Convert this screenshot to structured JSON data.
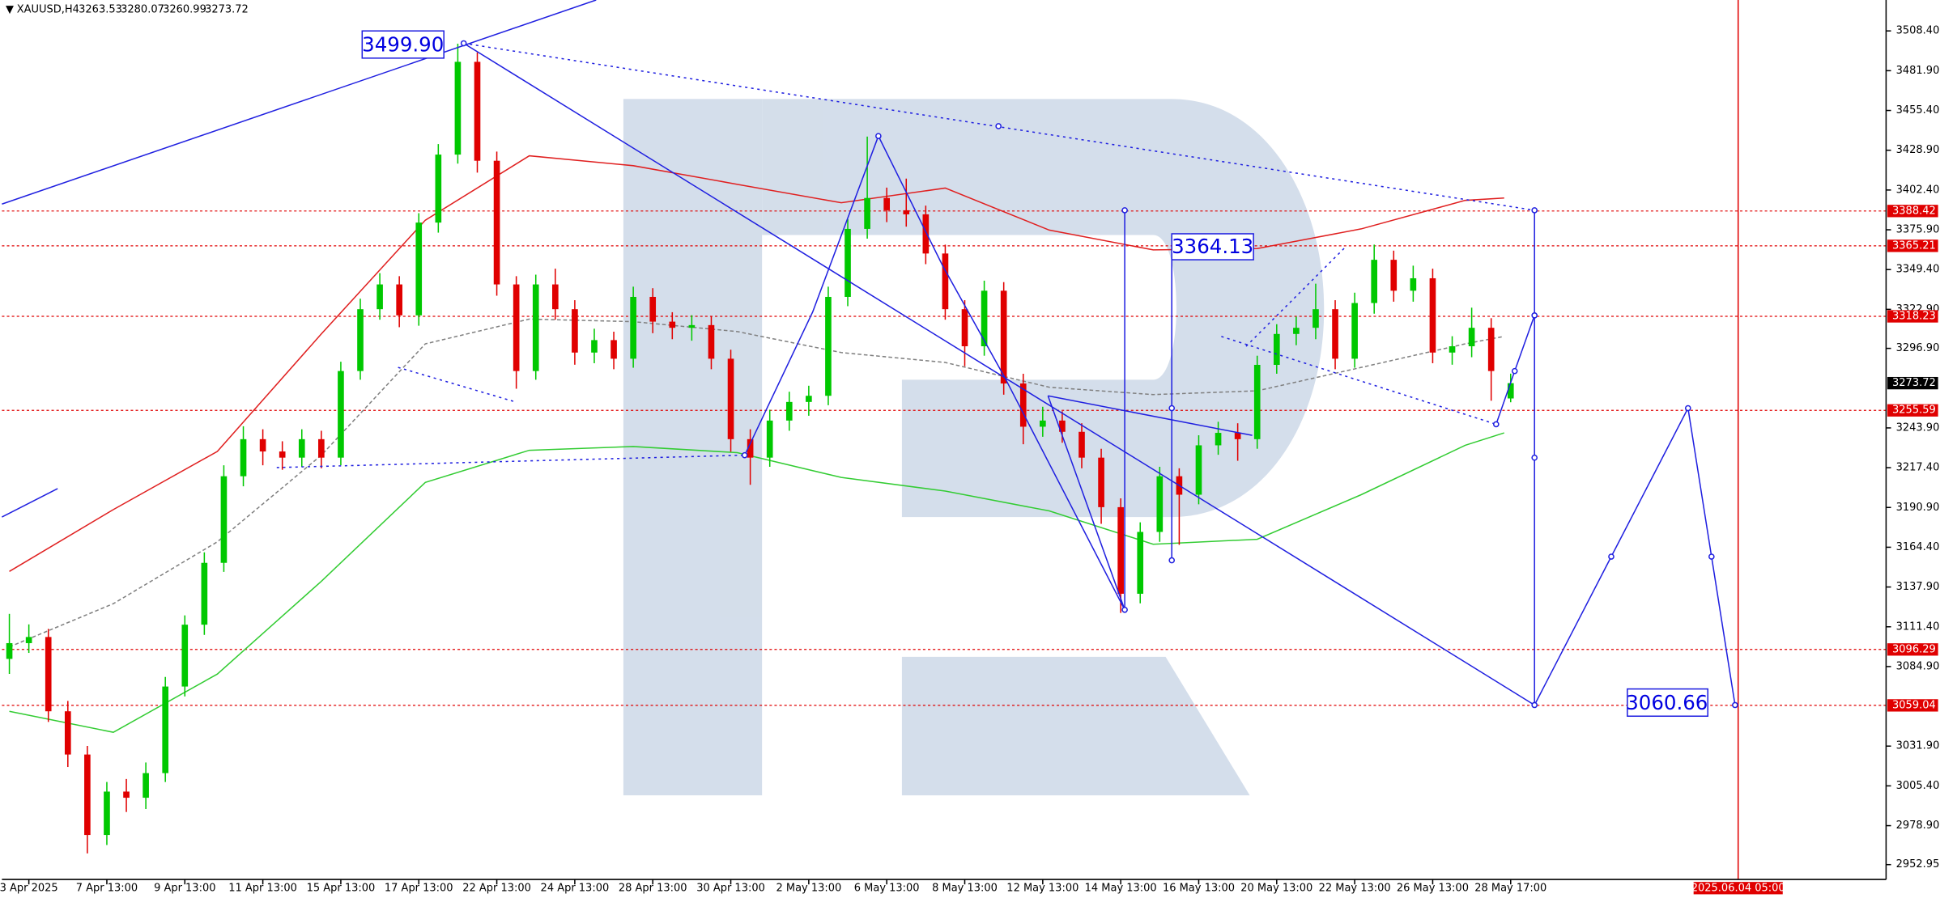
{
  "chart_data": {
    "type": "candlestick",
    "symbol": "XAUUSD,H4",
    "up_color": "#00c800",
    "down_color": "#e00000",
    "x": [
      0,
      3,
      6,
      9,
      12,
      15,
      18,
      21,
      24,
      27,
      30,
      33,
      36,
      39,
      42,
      45,
      48,
      51,
      54,
      57,
      60,
      63,
      66,
      69,
      72,
      75,
      78,
      81,
      84,
      87,
      90,
      93,
      96,
      99,
      102,
      105,
      108,
      111,
      114,
      117,
      120,
      123,
      126,
      129,
      132,
      135,
      138,
      141,
      144,
      147,
      150,
      153,
      156,
      159,
      162,
      165,
      168,
      171,
      174,
      177,
      180,
      183,
      186,
      189,
      192,
      195,
      198,
      201,
      204,
      207,
      210,
      213,
      216,
      219,
      222,
      225,
      228,
      231
    ],
    "open": [
      3090.0,
      3100.5,
      3104.6,
      3055.1,
      3026.3,
      2972.7,
      3001.6,
      2997.5,
      3013.9,
      3071.6,
      3112.8,
      3154.0,
      3211.7,
      3236.4,
      3228.2,
      3224.1,
      3236.4,
      3224.1,
      3281.8,
      3323.0,
      3339.5,
      3318.9,
      3380.7,
      3426.0,
      3487.8,
      3421.9,
      3339.5,
      3281.8,
      3339.5,
      3323.0,
      3294.1,
      3302.4,
      3290.0,
      3331.2,
      3314.7,
      3310.6,
      3312.4,
      3290.0,
      3236.4,
      3224.1,
      3248.8,
      3261.2,
      3265.3,
      3331.2,
      3376.5,
      3397.1,
      3388.9,
      3386.2,
      3360.1,
      3323.0,
      3298.3,
      3335.3,
      3273.5,
      3244.7,
      3248.8,
      3241.3,
      3224.1,
      3191.1,
      3133.4,
      3174.6,
      3211.7,
      3199.4,
      3232.3,
      3240.6,
      3236.4,
      3285.9,
      3306.5,
      3310.6,
      3323.0,
      3290.0,
      3327.1,
      3355.9,
      3335.3,
      3343.6,
      3294.1,
      3298.3,
      3310.6,
      3263.53
    ],
    "high": [
      3120,
      3113,
      3110,
      3062,
      3032,
      3008,
      3010,
      3021,
      3078,
      3119,
      3161,
      3219,
      3245,
      3243,
      3235,
      3243,
      3242,
      3288,
      3330,
      3347,
      3345,
      3387,
      3433,
      3499.9,
      3494,
      3428,
      3345,
      3346,
      3350,
      3329,
      3310,
      3308,
      3338,
      3337,
      3321,
      3319,
      3318,
      3296,
      3243,
      3256,
      3268,
      3272,
      3338,
      3383,
      3438,
      3404,
      3410,
      3392,
      3366,
      3329,
      3342,
      3341,
      3280,
      3258,
      3255,
      3247,
      3230,
      3197,
      3181,
      3218,
      3217,
      3239,
      3248,
      3247,
      3292,
      3313,
      3318,
      3340,
      3329,
      3334,
      3366,
      3362,
      3352,
      3350,
      3305,
      3324,
      3317,
      3280.07
    ],
    "low": [
      3080,
      3094,
      3048,
      3018,
      2960.4,
      2966,
      2988,
      2990,
      3008,
      3065,
      3106,
      3148,
      3205,
      3219,
      3216,
      3218,
      3217,
      3219,
      3276,
      3316,
      3311,
      3312,
      3374,
      3420,
      3414,
      3332,
      3270,
      3276,
      3316,
      3286,
      3287,
      3283,
      3284,
      3307,
      3303,
      3302,
      3283,
      3228,
      3206,
      3218,
      3242,
      3252,
      3259,
      3325,
      3370,
      3381,
      3378,
      3353,
      3316,
      3285,
      3292,
      3266,
      3233,
      3238,
      3234,
      3217,
      3180,
      3120.6,
      3127,
      3168,
      3166,
      3193,
      3226,
      3222,
      3230,
      3280,
      3299,
      3303,
      3283,
      3284,
      3320,
      3328,
      3328,
      3287,
      3286,
      3291,
      3262,
      3260.99
    ],
    "close": [
      3100.5,
      3104.6,
      3055.1,
      3026.3,
      2972.7,
      3001.6,
      2997.5,
      3013.9,
      3071.6,
      3112.8,
      3154.0,
      3211.7,
      3236.4,
      3228.2,
      3224.1,
      3236.4,
      3224.1,
      3281.8,
      3323.0,
      3339.5,
      3318.9,
      3380.7,
      3426.0,
      3487.8,
      3421.9,
      3339.5,
      3281.8,
      3339.5,
      3323.0,
      3294.1,
      3302.4,
      3290.0,
      3331.2,
      3314.7,
      3310.6,
      3312.4,
      3290.0,
      3236.4,
      3224.1,
      3248.8,
      3261.2,
      3265.3,
      3331.2,
      3376.5,
      3397.1,
      3388.9,
      3386.2,
      3360.1,
      3323.0,
      3298.3,
      3335.3,
      3273.5,
      3244.7,
      3248.8,
      3241.3,
      3224.1,
      3191.1,
      3133.4,
      3174.6,
      3211.7,
      3199.4,
      3232.3,
      3240.6,
      3236.4,
      3285.9,
      3306.5,
      3310.6,
      3323.0,
      3290.0,
      3327.1,
      3355.9,
      3335.3,
      3343.6,
      3294.1,
      3298.3,
      3310.6,
      3281.8,
      3273.72
    ],
    "indicators": [
      {
        "color": "#e02020",
        "dashed": false,
        "x": [
          0,
          16,
          32,
          48,
          64,
          80,
          96,
          112,
          128,
          144,
          160,
          176,
          192,
          208,
          224,
          230
        ],
        "values": [
          3148.3,
          3189.5,
          3228.2,
          3306.5,
          3382.3,
          3425.2,
          3418.6,
          3406.2,
          3393.9,
          3403.7,
          3375.7,
          3362.5,
          3363.4,
          3376.5,
          3395.5,
          3397.1
        ]
      },
      {
        "color": "#33cc33",
        "dashed": false,
        "x": [
          0,
          16,
          32,
          48,
          64,
          80,
          96,
          112,
          128,
          144,
          160,
          176,
          192,
          208,
          224,
          230
        ],
        "values": [
          3055.1,
          3041.1,
          3079.9,
          3141.7,
          3207.6,
          3229.0,
          3231.5,
          3227.4,
          3210.9,
          3201.8,
          3188.6,
          3166.4,
          3169.7,
          3199.4,
          3232.3,
          3240.6
        ]
      },
      {
        "color": "#808080",
        "dashed": true,
        "x": [
          0,
          16,
          32,
          48,
          64,
          80,
          96,
          112,
          128,
          144,
          160,
          176,
          192,
          208,
          224,
          230
        ],
        "values": [
          3098.0,
          3126.8,
          3168.0,
          3225.7,
          3299.9,
          3316.4,
          3314.7,
          3308.1,
          3294.1,
          3287.5,
          3271.0,
          3266.1,
          3268.6,
          3284.2,
          3299.9,
          3304.9
        ]
      }
    ],
    "levels": {
      "color": "#e00000",
      "values": [
        3388.42,
        3365.21,
        3318.23,
        3255.59,
        3096.29,
        3059.04
      ]
    },
    "annotations": [
      "3499.90",
      "3364.13",
      "3060.66"
    ],
    "time_marker": {
      "value": 266,
      "label": "2025.06.04 05:00"
    },
    "xlim": [
      -1.143,
      288.76
    ],
    "ylim": [
      2943.06,
      3529.0
    ],
    "yticks": [
      {
        "value": 3508.4,
        "label": "3508.40"
      },
      {
        "value": 3481.9,
        "label": "3481.90"
      },
      {
        "value": 3455.4,
        "label": "3455.40"
      },
      {
        "value": 3428.9,
        "label": "3428.90"
      },
      {
        "value": 3402.4,
        "label": "3402.40"
      },
      {
        "value": 3375.9,
        "label": "3375.90"
      },
      {
        "value": 3349.4,
        "label": "3349.40"
      },
      {
        "value": 3322.9,
        "label": "3322.90"
      },
      {
        "value": 3296.9,
        "label": "3296.90"
      },
      {
        "value": 3243.9,
        "label": "3243.90"
      },
      {
        "value": 3217.4,
        "label": "3217.40"
      },
      {
        "value": 3190.9,
        "label": "3190.90"
      },
      {
        "value": 3164.4,
        "label": "3164.40"
      },
      {
        "value": 3137.9,
        "label": "3137.90"
      },
      {
        "value": 3111.4,
        "label": "3111.40"
      },
      {
        "value": 3084.9,
        "label": "3084.90"
      },
      {
        "value": 3031.9,
        "label": "3031.90"
      },
      {
        "value": 3005.4,
        "label": "3005.40"
      },
      {
        "value": 2978.9,
        "label": "2978.90"
      },
      2952.95
    ],
    "xticks": [
      {
        "value": 3,
        "label": "3 Apr 2025"
      },
      {
        "value": 15,
        "label": "7 Apr 13:00"
      },
      {
        "value": 27,
        "label": "9 Apr 13:00"
      },
      {
        "value": 39,
        "label": "11 Apr 13:00"
      },
      {
        "value": 51,
        "label": "15 Apr 13:00"
      },
      {
        "value": 63,
        "label": "17 Apr 13:00"
      },
      {
        "value": 75,
        "label": "22 Apr 13:00"
      },
      {
        "value": 87,
        "label": "24 Apr 13:00"
      },
      {
        "value": 99,
        "label": "28 Apr 13:00"
      },
      {
        "value": 111,
        "label": "30 Apr 13:00"
      },
      {
        "value": 123,
        "label": "2 May 13:00"
      },
      {
        "value": 135,
        "label": "6 May 13:00"
      },
      {
        "value": 147,
        "label": "8 May 13:00"
      },
      {
        "value": 159,
        "label": "12 May 13:00"
      },
      {
        "value": 171,
        "label": "14 May 13:00"
      },
      {
        "value": 183,
        "label": "16 May 13:00"
      },
      {
        "value": 195,
        "label": "20 May 13:00"
      },
      {
        "value": 207,
        "label": "22 May 13:00"
      },
      {
        "value": 219,
        "label": "26 May 13:00"
      },
      {
        "value": 231,
        "label": "28 May 17:00"
      }
    ]
  }
}
